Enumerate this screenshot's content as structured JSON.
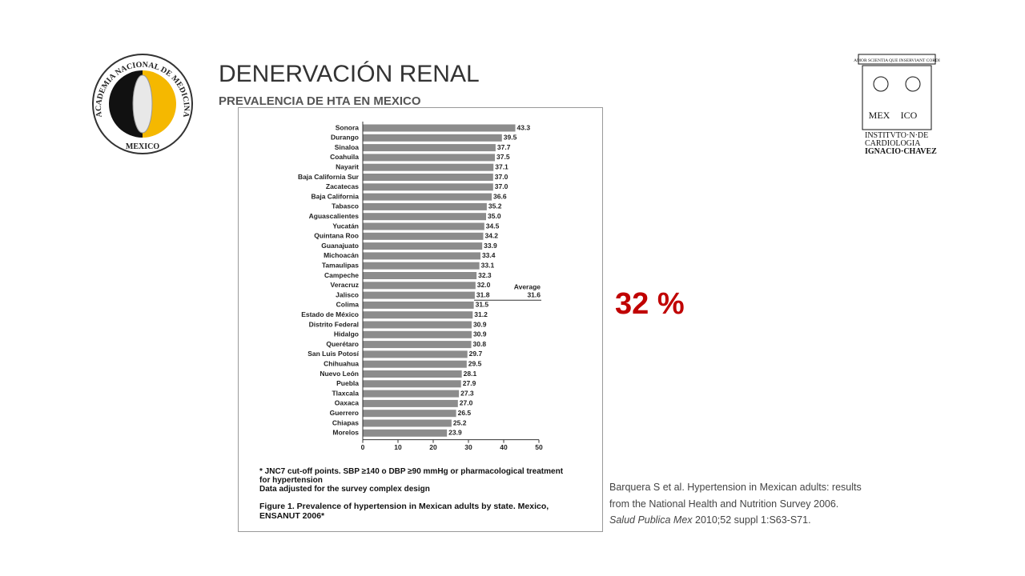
{
  "header": {
    "title": "DENERVACIÓN RENAL",
    "subtitle": "PREVALENCIA DE HTA EN MEXICO"
  },
  "logos": {
    "left": {
      "ring": "ACADEMIA NACIONAL DE MEDICINA",
      "bottom": "MEXICO"
    },
    "right": {
      "motto": "AMOR SCIENTIA QUE INSERVIANT CORDI",
      "mex": "MEX",
      "ico": "ICO",
      "lines": [
        "INSTITVTO·N·DE",
        "CARDIOLOGIA",
        "IGNACIO·CHAVEZ"
      ]
    }
  },
  "highlight": "32 %",
  "citation": {
    "lines": [
      "Barquera S et al. Hypertension in Mexican adults: results",
      "from the National Health and Nutrition Survey  2006."
    ],
    "journal": "Salud Publica Mex",
    "rest": " 2010;52 suppl 1:S63-S71."
  },
  "chart_data": {
    "type": "bar",
    "orientation": "horizontal",
    "color": "#8c8c8c",
    "categories": [
      "Sonora",
      "Durango",
      "Sinaloa",
      "Coahuila",
      "Nayarit",
      "Baja California Sur",
      "Zacatecas",
      "Baja California",
      "Tabasco",
      "Aguascalientes",
      "Yucatán",
      "Quintana Roo",
      "Guanajuato",
      "Michoacán",
      "Tamaulipas",
      "Campeche",
      "Veracruz",
      "Jalisco",
      "Colima",
      "Estado de México",
      "Distrito Federal",
      "Hidalgo",
      "Querétaro",
      "San Luis Potosí",
      "Chihuahua",
      "Nuevo León",
      "Puebla",
      "Tlaxcala",
      "Oaxaca",
      "Guerrero",
      "Chiapas",
      "Morelos"
    ],
    "values": [
      43.3,
      39.5,
      37.7,
      37.5,
      37.1,
      37.0,
      37.0,
      36.6,
      35.2,
      35.0,
      34.5,
      34.2,
      33.9,
      33.4,
      33.1,
      32.3,
      32.0,
      31.8,
      31.5,
      31.2,
      30.9,
      30.9,
      30.8,
      29.7,
      29.5,
      28.1,
      27.9,
      27.3,
      27.0,
      26.5,
      25.2,
      23.9
    ],
    "value_labels": [
      "43.3",
      "39.5",
      "37.7",
      "37.5",
      "37.1",
      "37.0",
      "37.0",
      "36.6",
      "35.2",
      "35.0",
      "34.5",
      "34.2",
      "33.9",
      "33.4",
      "33.1",
      "32.3",
      "32.0",
      "31.8",
      "31.5",
      "31.2",
      "30.9",
      "30.9",
      "30.8",
      "29.7",
      "29.5",
      "28.1",
      "27.9",
      "27.3",
      "27.0",
      "26.5",
      "25.2",
      "23.9"
    ],
    "xlim": [
      0,
      50
    ],
    "xticks": [
      0,
      10,
      20,
      30,
      40,
      50
    ],
    "average": {
      "label": "Average",
      "value": 31.6
    },
    "footnote": [
      "* JNC7 cut-off points. SBP ≥140 o DBP ≥90 mmHg or pharmacological treatment",
      "for hypertension",
      "Data adjusted for the survey complex design"
    ],
    "caption": [
      "Figure 1. Prevalence of hypertension in Mexican adults by state. Mexico,",
      "ENSANUT 2006*"
    ]
  }
}
